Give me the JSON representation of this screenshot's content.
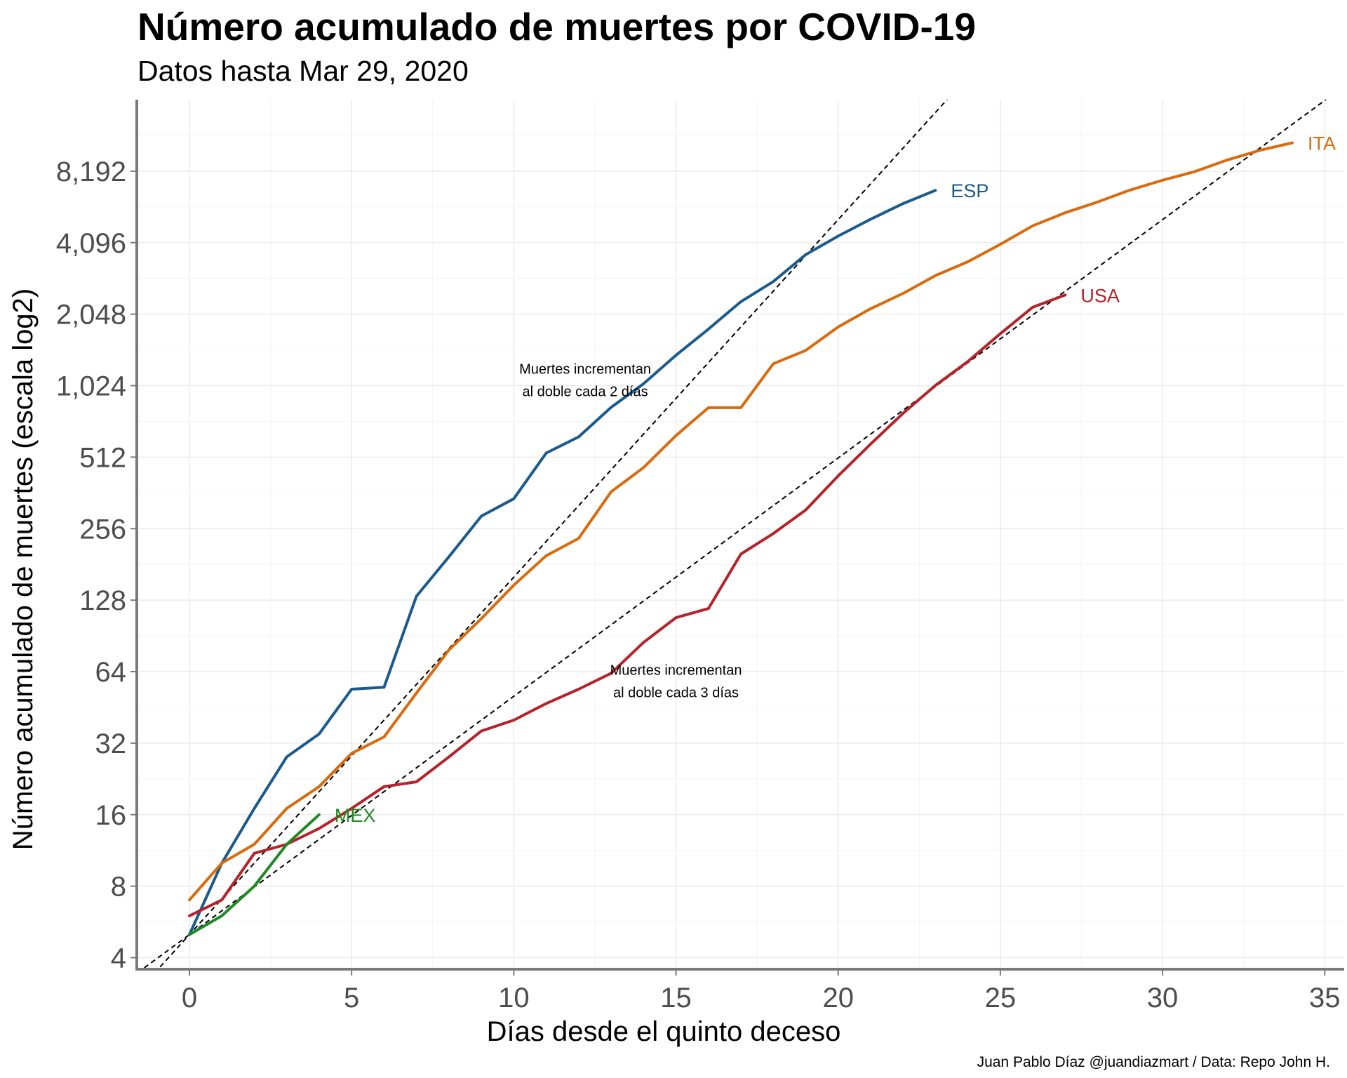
{
  "title": "Número acumulado de muertes por COVID-19",
  "subtitle": "Datos hasta Mar 29, 2020",
  "caption": "Juan Pablo Díaz @juandiazmart / Data: Repo John H.",
  "chart_data": {
    "type": "line",
    "xlabel": "Días desde el quinto deceso",
    "ylabel": "Número acumulado de muertes (escala log2)",
    "y_scale": "log2",
    "xlim": [
      -1.6,
      35.6
    ],
    "ylim": [
      3.6,
      16384
    ],
    "x_ticks": [
      0,
      5,
      10,
      15,
      20,
      25,
      30,
      35
    ],
    "y_ticks": [
      4,
      8,
      16,
      32,
      64,
      128,
      256,
      512,
      1024,
      2048,
      4096,
      8192
    ],
    "y_tick_labels": [
      "4",
      "8",
      "16",
      "32",
      "64",
      "128",
      "256",
      "512",
      "1,024",
      "2,048",
      "4,096",
      "8,192"
    ],
    "grid": true,
    "legend": "direct labels at line ends",
    "series": [
      {
        "name": "ESP",
        "color": "#1a5a8c",
        "x": [
          0,
          1,
          2,
          3,
          4,
          5,
          6,
          7,
          8,
          9,
          10,
          11,
          12,
          13,
          14,
          15,
          16,
          17,
          18,
          19,
          20,
          21,
          22,
          23
        ],
        "values": [
          5,
          10,
          17,
          28,
          35,
          54,
          55,
          133,
          195,
          289,
          342,
          533,
          623,
          830,
          1043,
          1375,
          1772,
          2311,
          2808,
          3647,
          4365,
          5138,
          5982,
          6803
        ]
      },
      {
        "name": "ITA",
        "color": "#d96b0e",
        "x": [
          0,
          1,
          2,
          3,
          4,
          5,
          6,
          7,
          8,
          9,
          10,
          11,
          12,
          13,
          14,
          15,
          16,
          17,
          18,
          19,
          20,
          21,
          22,
          23,
          24,
          25,
          26,
          27,
          28,
          29,
          30,
          31,
          32,
          33,
          34
        ],
        "values": [
          7,
          10,
          12,
          17,
          21,
          29,
          34,
          52,
          79,
          107,
          148,
          197,
          233,
          366,
          463,
          631,
          827,
          827,
          1266,
          1441,
          1809,
          2158,
          2503,
          2978,
          3405,
          4032,
          4825,
          5476,
          6077,
          6820,
          7503,
          8165,
          9134,
          10023,
          10779
        ]
      },
      {
        "name": "USA",
        "color": "#b5232a",
        "x": [
          0,
          1,
          2,
          3,
          4,
          5,
          6,
          7,
          8,
          9,
          10,
          11,
          12,
          13,
          14,
          15,
          16,
          17,
          18,
          19,
          20,
          21,
          22,
          23,
          24,
          25,
          26,
          27
        ],
        "values": [
          6,
          7,
          11,
          12,
          14,
          17,
          21,
          22,
          28,
          36,
          40,
          47,
          54,
          63,
          85,
          108,
          118,
          200,
          244,
          307,
          427,
          581,
          783,
          1027,
          1295,
          1695,
          2191,
          2467
        ]
      },
      {
        "name": "MEX",
        "color": "#1f8a25",
        "x": [
          0,
          1,
          2,
          3,
          4
        ],
        "values": [
          5,
          6,
          8,
          12,
          16
        ]
      }
    ],
    "reference_lines": [
      {
        "label": "Muertes incrementan\nal doble cada 2 días",
        "doubling_days": 2,
        "start_value": 5
      },
      {
        "label": "Muertes incrementan\nal doble cada 3 días",
        "doubling_days": 3,
        "start_value": 5
      }
    ]
  }
}
